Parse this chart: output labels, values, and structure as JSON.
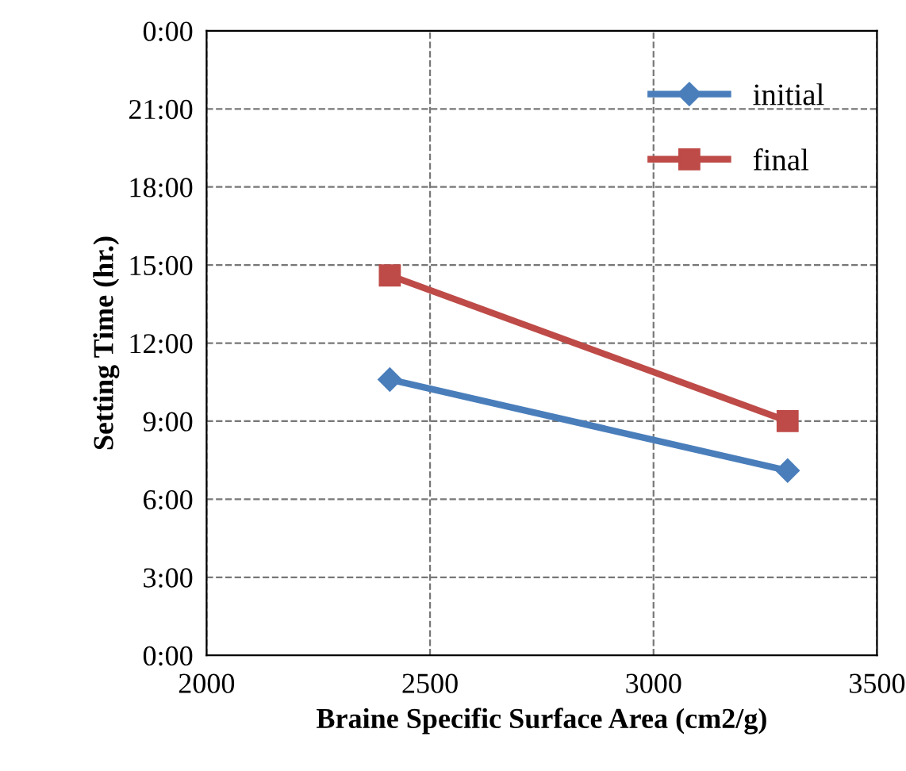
{
  "chart_data": {
    "type": "line",
    "xlabel": "Braine Specific Surface Area (cm2/g)",
    "ylabel": "Setting Time (hr.)",
    "xlim": [
      2000,
      3500
    ],
    "xticks": [
      2000,
      2500,
      3000,
      3500
    ],
    "ylim": [
      0,
      24
    ],
    "yticks": [
      {
        "value": 0,
        "label": "0:00"
      },
      {
        "value": 3,
        "label": "3:00"
      },
      {
        "value": 6,
        "label": "6:00"
      },
      {
        "value": 9,
        "label": "9:00"
      },
      {
        "value": 12,
        "label": "12:00"
      },
      {
        "value": 15,
        "label": "15:00"
      },
      {
        "value": 18,
        "label": "18:00"
      },
      {
        "value": 21,
        "label": "21:00"
      },
      {
        "value": 24,
        "label": "0:00"
      }
    ],
    "x": [
      2410,
      3300
    ],
    "grid": true,
    "legend": "top right",
    "line_style": "solid",
    "series": [
      {
        "name": "initial",
        "color": "#4a7ebb",
        "marker": "diamond",
        "values": [
          10.6,
          7.1
        ]
      },
      {
        "name": "final",
        "color": "#be4b48",
        "marker": "square",
        "values": [
          14.6,
          9.0
        ]
      }
    ]
  }
}
